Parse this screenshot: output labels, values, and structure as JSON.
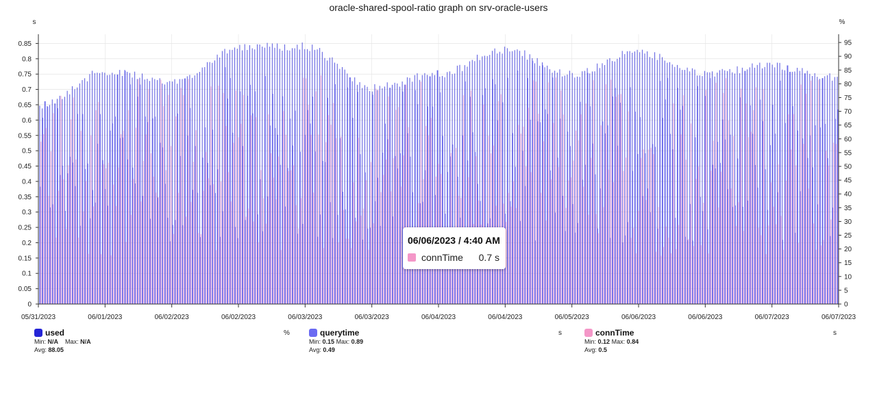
{
  "chart_data": {
    "type": "bar",
    "title": "oracle-shared-spool-ratio graph on srv-oracle-users",
    "left_axis": {
      "unit": "s",
      "ylim": [
        0,
        0.88
      ],
      "ticks": [
        "0",
        "0.05",
        "0.1",
        "0.15",
        "0.2",
        "0.25",
        "0.3",
        "0.35",
        "0.4",
        "0.45",
        "0.5",
        "0.55",
        "0.6",
        "0.65",
        "0.7",
        "0.75",
        "0.8",
        "0.85"
      ]
    },
    "right_axis": {
      "unit": "%",
      "ylim": [
        0,
        98
      ],
      "ticks": [
        "0",
        "5",
        "10",
        "15",
        "20",
        "25",
        "30",
        "35",
        "40",
        "45",
        "50",
        "55",
        "60",
        "65",
        "70",
        "75",
        "80",
        "85",
        "90",
        "95"
      ]
    },
    "x_ticks": [
      "05/31/2023",
      "06/01/2023",
      "06/02/2023",
      "06/02/2023",
      "06/03/2023",
      "06/03/2023",
      "06/04/2023",
      "06/04/2023",
      "06/05/2023",
      "06/06/2023",
      "06/06/2023",
      "06/07/2023",
      "06/07/2023"
    ],
    "grid": true,
    "legend_position": "bottom",
    "series": [
      {
        "name": "used",
        "unit": "%",
        "axis": "right",
        "color": "#2424d6",
        "min": "N/A",
        "max": "N/A",
        "avg": "88.05",
        "envelope_x": [
          "05/31/2023",
          "06/01/2023",
          "06/02/2023",
          "06/02/2023",
          "06/03/2023",
          "06/03/2023",
          "06/04/2023",
          "06/04/2023",
          "06/05/2023",
          "06/06/2023",
          "06/06/2023",
          "06/07/2023",
          "06/07/2023"
        ],
        "envelope_values": [
          74,
          86,
          82,
          95,
          95,
          80,
          85,
          94,
          85,
          93,
          85,
          88,
          84
        ]
      },
      {
        "name": "querytime",
        "unit": "s",
        "axis": "left",
        "color": "#6a6af2",
        "min": "0.15",
        "max": "0.89",
        "avg": "0.49"
      },
      {
        "name": "connTime",
        "unit": "s",
        "axis": "left",
        "color": "#f497c8",
        "min": "0.12",
        "max": "0.84",
        "avg": "0.5"
      }
    ],
    "tooltip": {
      "time": "06/06/2023 / 4:40 AM",
      "series": "connTime",
      "value": "0.7 s",
      "color": "#f497c8"
    }
  },
  "legend": {
    "min_label": "Min:",
    "max_label": "Max:",
    "avg_label": "Avg:"
  }
}
